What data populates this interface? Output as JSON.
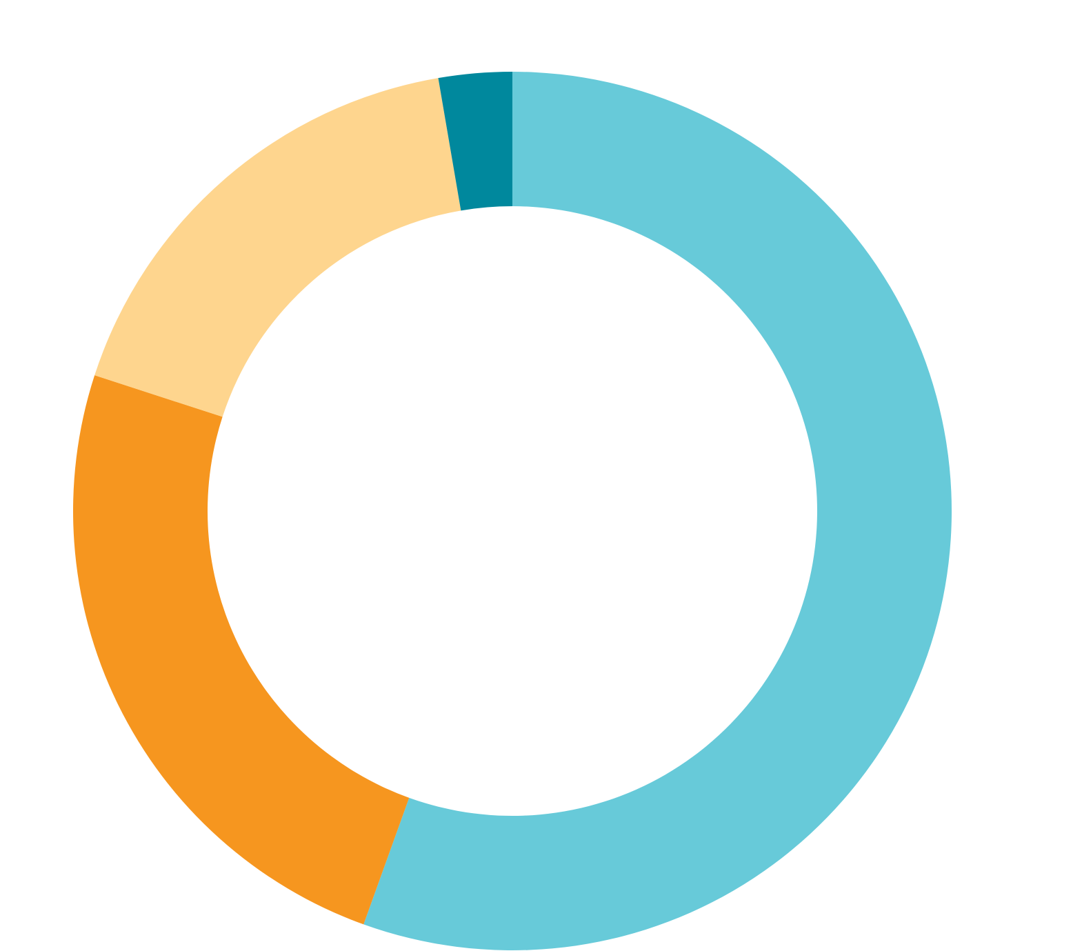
{
  "chart_data": {
    "type": "pie",
    "variant": "donut",
    "start_angle_deg": 0,
    "direction": "clockwise",
    "slices": [
      {
        "value": 55.5,
        "color": "#67CAD9"
      },
      {
        "value": 24.5,
        "color": "#F6961F"
      },
      {
        "value": 17.3,
        "color": "#FED58E"
      },
      {
        "value": 2.7,
        "color": "#00889D"
      }
    ],
    "title": "",
    "legend": "none",
    "data_labels": "none"
  }
}
